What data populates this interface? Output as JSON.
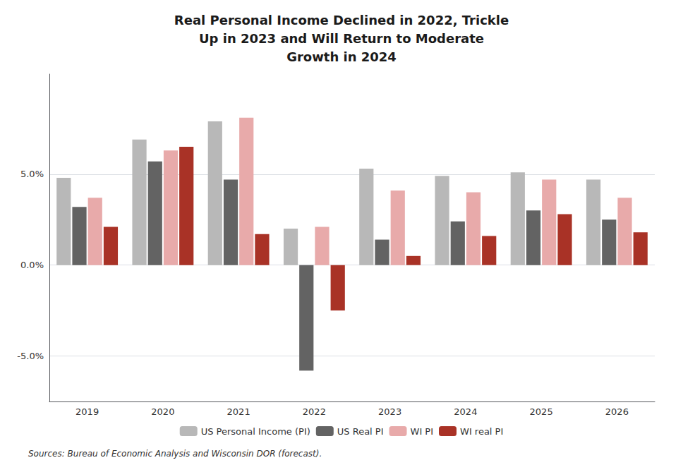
{
  "chart_data": {
    "type": "bar",
    "title": "Real Personal Income Declined in 2022, Trickle\nUp in 2023 and Will Return to Moderate\nGrowth in 2024",
    "categories": [
      "2019",
      "2020",
      "2021",
      "2022",
      "2023",
      "2024",
      "2025",
      "2026"
    ],
    "series": [
      {
        "name": "US Personal Income (PI)",
        "color": "#b8b8b8",
        "values": [
          4.8,
          6.9,
          7.9,
          2.0,
          5.3,
          4.9,
          5.1,
          4.7
        ]
      },
      {
        "name": "US Real PI",
        "color": "#636363",
        "values": [
          3.2,
          5.7,
          4.7,
          -5.8,
          1.4,
          2.4,
          3.0,
          2.5
        ]
      },
      {
        "name": "WI PI",
        "color": "#e8aaaa",
        "values": [
          3.7,
          6.3,
          8.1,
          2.1,
          4.1,
          4.0,
          4.7,
          3.7
        ]
      },
      {
        "name": "WI real PI",
        "color": "#a93226",
        "values": [
          2.1,
          6.5,
          1.7,
          -2.5,
          0.5,
          1.6,
          2.8,
          1.8
        ]
      }
    ],
    "ylim": [
      -7.5,
      10.5
    ],
    "yticks": [
      {
        "value": -5.0,
        "label": "-5.0%"
      },
      {
        "value": 0.0,
        "label": "0.0%"
      },
      {
        "value": 5.0,
        "label": "5.0%"
      }
    ],
    "grid": true,
    "legend": "bottom",
    "source": "Sources: Bureau of Economic Analysis and Wisconsin DOR (forecast)."
  }
}
